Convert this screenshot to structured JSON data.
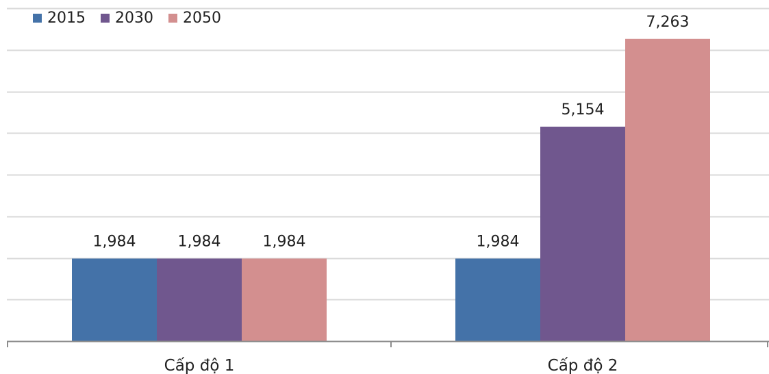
{
  "chart_data": {
    "type": "bar",
    "categories": [
      "Cấp độ 1",
      "Cấp độ 2"
    ],
    "series": [
      {
        "name": "2015",
        "values": [
          1984,
          1984
        ],
        "labels": [
          "1,984",
          "1,984"
        ],
        "color": "#4472a8"
      },
      {
        "name": "2030",
        "values": [
          1984,
          5154
        ],
        "labels": [
          "1,984",
          "5,154"
        ],
        "color": "#70578e"
      },
      {
        "name": "2050",
        "values": [
          1984,
          7263
        ],
        "labels": [
          "1,984",
          "7,263"
        ],
        "color": "#d38f8f"
      }
    ],
    "title": "",
    "xlabel": "",
    "ylabel": "",
    "ylim": [
      0,
      8000
    ],
    "grid": true,
    "legend": "top-left",
    "colors": {
      "grid": "#d9d9d9",
      "axis": "#8c8c8c"
    }
  }
}
